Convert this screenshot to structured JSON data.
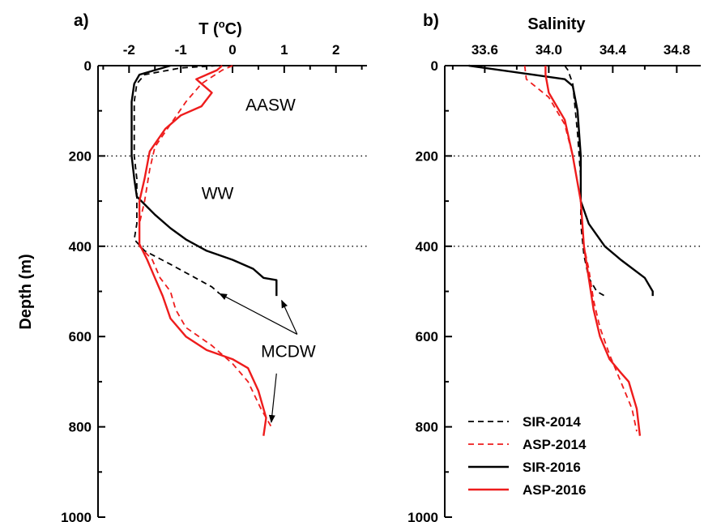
{
  "colors": {
    "black": "#000000",
    "red": "#ee1c1c"
  },
  "y_ticks": [
    "0",
    "200",
    "400",
    "600",
    "800",
    "1000"
  ],
  "chart_data": [
    {
      "type": "line",
      "panel_label": "a)",
      "xlabel": "T (°C)",
      "xlabel_parts": {
        "main": "T (",
        "sup": "o",
        "end": "C)"
      },
      "ylabel": "Depth (m)",
      "xlim": [
        -2.6,
        2.6
      ],
      "ylim": [
        0,
        1000
      ],
      "y_inverted": true,
      "x_ticks": [
        "-2",
        "-1",
        "0",
        "1",
        "2"
      ],
      "x_tick_values": [
        -2,
        -1,
        0,
        1,
        2
      ],
      "hlines": [
        200,
        400
      ],
      "annotations": [
        {
          "text": "AASW",
          "x": 0.25,
          "y": 100
        },
        {
          "text": "WW",
          "x": -0.6,
          "y": 295
        },
        {
          "text": "MCDW",
          "x": 0.55,
          "y": 645
        }
      ],
      "arrows": [
        {
          "from": [
            1.25,
            595
          ],
          "to": [
            -0.25,
            505
          ]
        },
        {
          "from": [
            1.25,
            595
          ],
          "to": [
            0.95,
            520
          ]
        },
        {
          "from": [
            0.85,
            682
          ],
          "to": [
            0.75,
            790
          ]
        }
      ],
      "series": [
        {
          "name": "SIR-2014",
          "color": "#000000",
          "dash": true,
          "points": [
            [
              -0.3,
              0
            ],
            [
              -1.0,
              5
            ],
            [
              -1.7,
              20
            ],
            [
              -1.85,
              40
            ],
            [
              -1.9,
              80
            ],
            [
              -1.9,
              150
            ],
            [
              -1.9,
              200
            ],
            [
              -1.85,
              250
            ],
            [
              -1.85,
              300
            ],
            [
              -1.85,
              350
            ],
            [
              -1.9,
              385
            ],
            [
              -1.7,
              410
            ],
            [
              -1.2,
              440
            ],
            [
              -0.8,
              465
            ],
            [
              -0.4,
              490
            ],
            [
              -0.25,
              505
            ]
          ]
        },
        {
          "name": "ASP-2014",
          "color": "#ee1c1c",
          "dash": true,
          "points": [
            [
              0.0,
              0
            ],
            [
              -0.2,
              10
            ],
            [
              -0.6,
              40
            ],
            [
              -0.9,
              80
            ],
            [
              -1.2,
              130
            ],
            [
              -1.5,
              180
            ],
            [
              -1.6,
              230
            ],
            [
              -1.7,
              300
            ],
            [
              -1.8,
              350
            ],
            [
              -1.8,
              400
            ],
            [
              -1.55,
              430
            ],
            [
              -1.4,
              470
            ],
            [
              -1.2,
              500
            ],
            [
              -1.1,
              540
            ],
            [
              -0.9,
              580
            ],
            [
              -0.4,
              620
            ],
            [
              0.0,
              660
            ],
            [
              0.3,
              700
            ],
            [
              0.55,
              760
            ],
            [
              0.75,
              800
            ]
          ]
        },
        {
          "name": "SIR-2016",
          "color": "#000000",
          "dash": false,
          "points": [
            [
              -1.2,
              0
            ],
            [
              -1.8,
              20
            ],
            [
              -1.9,
              40
            ],
            [
              -1.95,
              80
            ],
            [
              -1.95,
              150
            ],
            [
              -1.95,
              200
            ],
            [
              -1.9,
              250
            ],
            [
              -1.85,
              290
            ],
            [
              -1.5,
              330
            ],
            [
              -1.2,
              360
            ],
            [
              -0.9,
              385
            ],
            [
              -0.5,
              410
            ],
            [
              0.0,
              430
            ],
            [
              0.4,
              450
            ],
            [
              0.6,
              470
            ],
            [
              0.85,
              475
            ],
            [
              0.85,
              510
            ]
          ]
        },
        {
          "name": "ASP-2016",
          "color": "#ee1c1c",
          "dash": false,
          "points": [
            [
              -0.2,
              0
            ],
            [
              -0.3,
              10
            ],
            [
              -0.7,
              30
            ],
            [
              -0.4,
              60
            ],
            [
              -0.6,
              90
            ],
            [
              -1.0,
              110
            ],
            [
              -1.3,
              140
            ],
            [
              -1.6,
              190
            ],
            [
              -1.7,
              250
            ],
            [
              -1.8,
              300
            ],
            [
              -1.8,
              350
            ],
            [
              -1.8,
              395
            ],
            [
              -1.65,
              430
            ],
            [
              -1.5,
              470
            ],
            [
              -1.35,
              510
            ],
            [
              -1.2,
              560
            ],
            [
              -0.9,
              600
            ],
            [
              -0.5,
              630
            ],
            [
              0.0,
              650
            ],
            [
              0.3,
              670
            ],
            [
              0.5,
              720
            ],
            [
              0.65,
              780
            ],
            [
              0.6,
              820
            ]
          ]
        }
      ]
    },
    {
      "type": "line",
      "panel_label": "b)",
      "xlabel": "Salinity",
      "xlim": [
        33.35,
        34.95
      ],
      "ylim": [
        0,
        1000
      ],
      "y_inverted": true,
      "x_ticks": [
        "33.6",
        "34.0",
        "34.4",
        "34.8"
      ],
      "x_tick_values": [
        33.6,
        34.0,
        34.4,
        34.8
      ],
      "hlines": [
        200,
        400
      ],
      "series": [
        {
          "name": "SIR-2014",
          "color": "#000000",
          "dash": true,
          "points": [
            [
              34.1,
              0
            ],
            [
              34.12,
              10
            ],
            [
              34.15,
              40
            ],
            [
              34.18,
              150
            ],
            [
              34.2,
              250
            ],
            [
              34.2,
              350
            ],
            [
              34.22,
              420
            ],
            [
              34.25,
              470
            ],
            [
              34.3,
              500
            ],
            [
              34.35,
              510
            ]
          ]
        },
        {
          "name": "ASP-2014",
          "color": "#ee1c1c",
          "dash": true,
          "points": [
            [
              33.85,
              0
            ],
            [
              33.86,
              30
            ],
            [
              34.0,
              70
            ],
            [
              34.1,
              130
            ],
            [
              34.15,
              200
            ],
            [
              34.2,
              300
            ],
            [
              34.22,
              400
            ],
            [
              34.25,
              450
            ],
            [
              34.28,
              520
            ],
            [
              34.32,
              580
            ],
            [
              34.38,
              640
            ],
            [
              34.45,
              700
            ],
            [
              34.52,
              760
            ],
            [
              34.55,
              810
            ]
          ]
        },
        {
          "name": "SIR-2016",
          "color": "#000000",
          "dash": false,
          "points": [
            [
              33.5,
              0
            ],
            [
              33.6,
              5
            ],
            [
              33.9,
              20
            ],
            [
              34.1,
              30
            ],
            [
              34.15,
              45
            ],
            [
              34.18,
              100
            ],
            [
              34.2,
              200
            ],
            [
              34.2,
              300
            ],
            [
              34.25,
              350
            ],
            [
              34.35,
              400
            ],
            [
              34.45,
              430
            ],
            [
              34.6,
              470
            ],
            [
              34.65,
              500
            ],
            [
              34.65,
              510
            ]
          ]
        },
        {
          "name": "ASP-2016",
          "color": "#ee1c1c",
          "dash": false,
          "points": [
            [
              33.98,
              0
            ],
            [
              33.98,
              20
            ],
            [
              34.0,
              60
            ],
            [
              34.1,
              120
            ],
            [
              34.15,
              200
            ],
            [
              34.2,
              300
            ],
            [
              34.22,
              400
            ],
            [
              34.25,
              470
            ],
            [
              34.28,
              540
            ],
            [
              34.32,
              600
            ],
            [
              34.38,
              650
            ],
            [
              34.45,
              680
            ],
            [
              34.5,
              700
            ],
            [
              34.55,
              760
            ],
            [
              34.57,
              820
            ]
          ]
        }
      ]
    }
  ],
  "legend": [
    {
      "label": "SIR-2014",
      "color": "#000000",
      "dash": true
    },
    {
      "label": "ASP-2014",
      "color": "#ee1c1c",
      "dash": true
    },
    {
      "label": "SIR-2016",
      "color": "#000000",
      "dash": false
    },
    {
      "label": "ASP-2016",
      "color": "#ee1c1c",
      "dash": false
    }
  ]
}
